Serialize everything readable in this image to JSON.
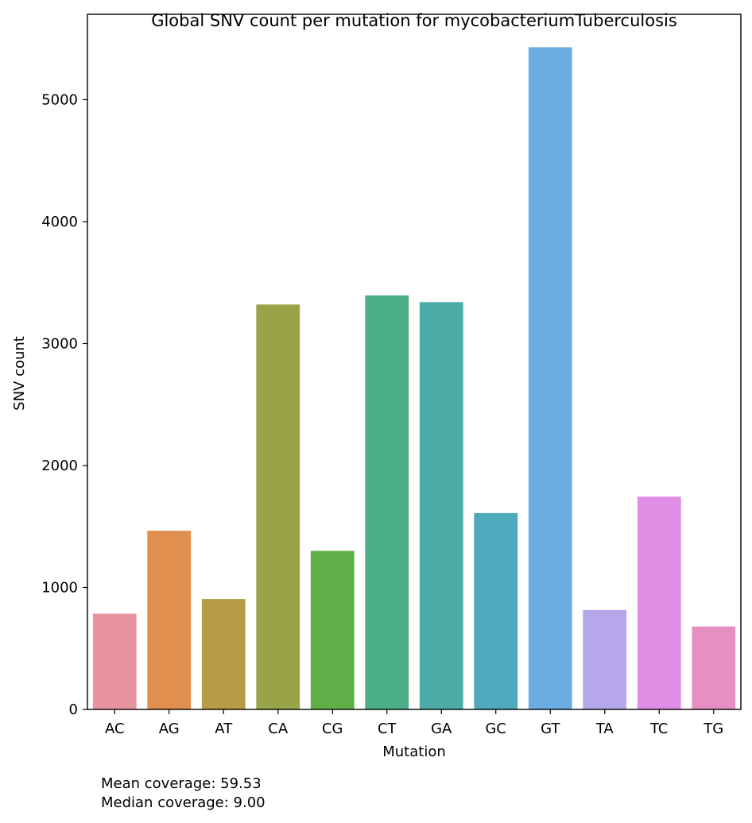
{
  "chart_data": {
    "type": "bar",
    "title": "Global SNV count per mutation for mycobacteriumTuberculosis",
    "xlabel": "Mutation",
    "ylabel": "SNV count",
    "categories": [
      "AC",
      "AG",
      "AT",
      "CA",
      "CG",
      "CT",
      "GA",
      "GC",
      "GT",
      "TA",
      "TC",
      "TG"
    ],
    "values": [
      785,
      1465,
      905,
      3320,
      1300,
      3395,
      3340,
      1610,
      5430,
      815,
      1745,
      680
    ],
    "colors": [
      "#e8949f",
      "#e08f4f",
      "#b79a47",
      "#98a447",
      "#5fae48",
      "#4aaf86",
      "#4aaba7",
      "#4ea9bd",
      "#6aaee1",
      "#b6a6ea",
      "#e08de6",
      "#e68fc2"
    ],
    "ylim": [
      0,
      5700
    ],
    "yticks": [
      0,
      1000,
      2000,
      3000,
      4000,
      5000
    ],
    "grid": false,
    "legend": "none"
  },
  "notes": {
    "mean": "Mean coverage: 59.53",
    "median": "Median coverage: 9.00"
  }
}
